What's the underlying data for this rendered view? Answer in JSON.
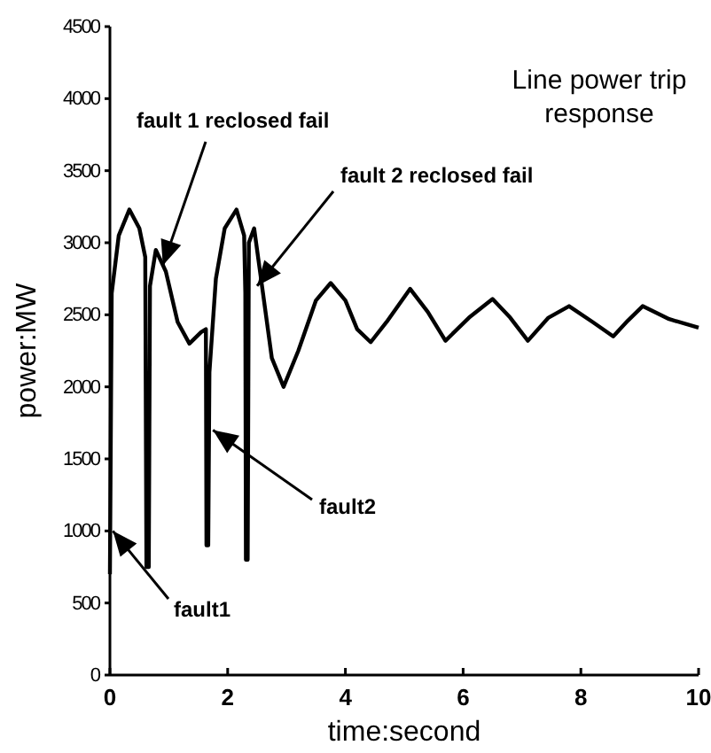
{
  "chart_data": {
    "type": "line",
    "title": "Line power trip response",
    "xlabel": "time:second",
    "ylabel": "power:MW",
    "xlim": [
      0,
      10
    ],
    "xticks": [
      0,
      2,
      4,
      6,
      8,
      10
    ],
    "ylim": [
      0,
      4500
    ],
    "yticks": [
      0,
      500,
      1000,
      1500,
      2000,
      2500,
      3000,
      3500,
      4000,
      4500
    ],
    "grid": false,
    "marker": "none",
    "line_style": "solid",
    "annotations": [
      {
        "text": "fault 1 reclosed fail",
        "x": 0.9,
        "y": 2844
      },
      {
        "text": "fault 2 reclosed fail",
        "x": 2.5,
        "y": 2700
      },
      {
        "text": "fault2",
        "x": 1.75,
        "y": 1700
      },
      {
        "text": "fault1",
        "x": 0.05,
        "y": 1000
      }
    ],
    "series": [
      {
        "color": "#000000",
        "x": [
          0,
          0.03,
          0.15,
          0.33,
          0.5,
          0.6,
          0.62,
          0.66,
          0.68,
          0.78,
          0.95,
          1.15,
          1.35,
          1.55,
          1.63,
          1.64,
          1.67,
          1.69,
          1.8,
          1.95,
          2.15,
          2.28,
          2.3,
          2.31,
          2.34,
          2.36,
          2.45,
          2.55,
          2.75,
          2.95,
          3.2,
          3.5,
          3.75,
          4.0,
          4.2,
          4.43,
          4.7,
          5.1,
          5.4,
          5.7,
          6.1,
          6.5,
          6.8,
          7.1,
          7.45,
          7.8,
          8.2,
          8.55,
          8.8,
          9.05,
          9.5,
          10
        ],
        "values": [
          700,
          2650,
          3050,
          3230,
          3100,
          2900,
          750,
          750,
          2700,
          2950,
          2800,
          2450,
          2300,
          2380,
          2400,
          900,
          900,
          2100,
          2750,
          3100,
          3230,
          3050,
          2650,
          800,
          800,
          3000,
          3100,
          2800,
          2200,
          2000,
          2250,
          2600,
          2720,
          2600,
          2400,
          2310,
          2450,
          2680,
          2520,
          2320,
          2480,
          2610,
          2480,
          2320,
          2480,
          2560,
          2450,
          2350,
          2460,
          2560,
          2470,
          2410
        ]
      }
    ]
  }
}
